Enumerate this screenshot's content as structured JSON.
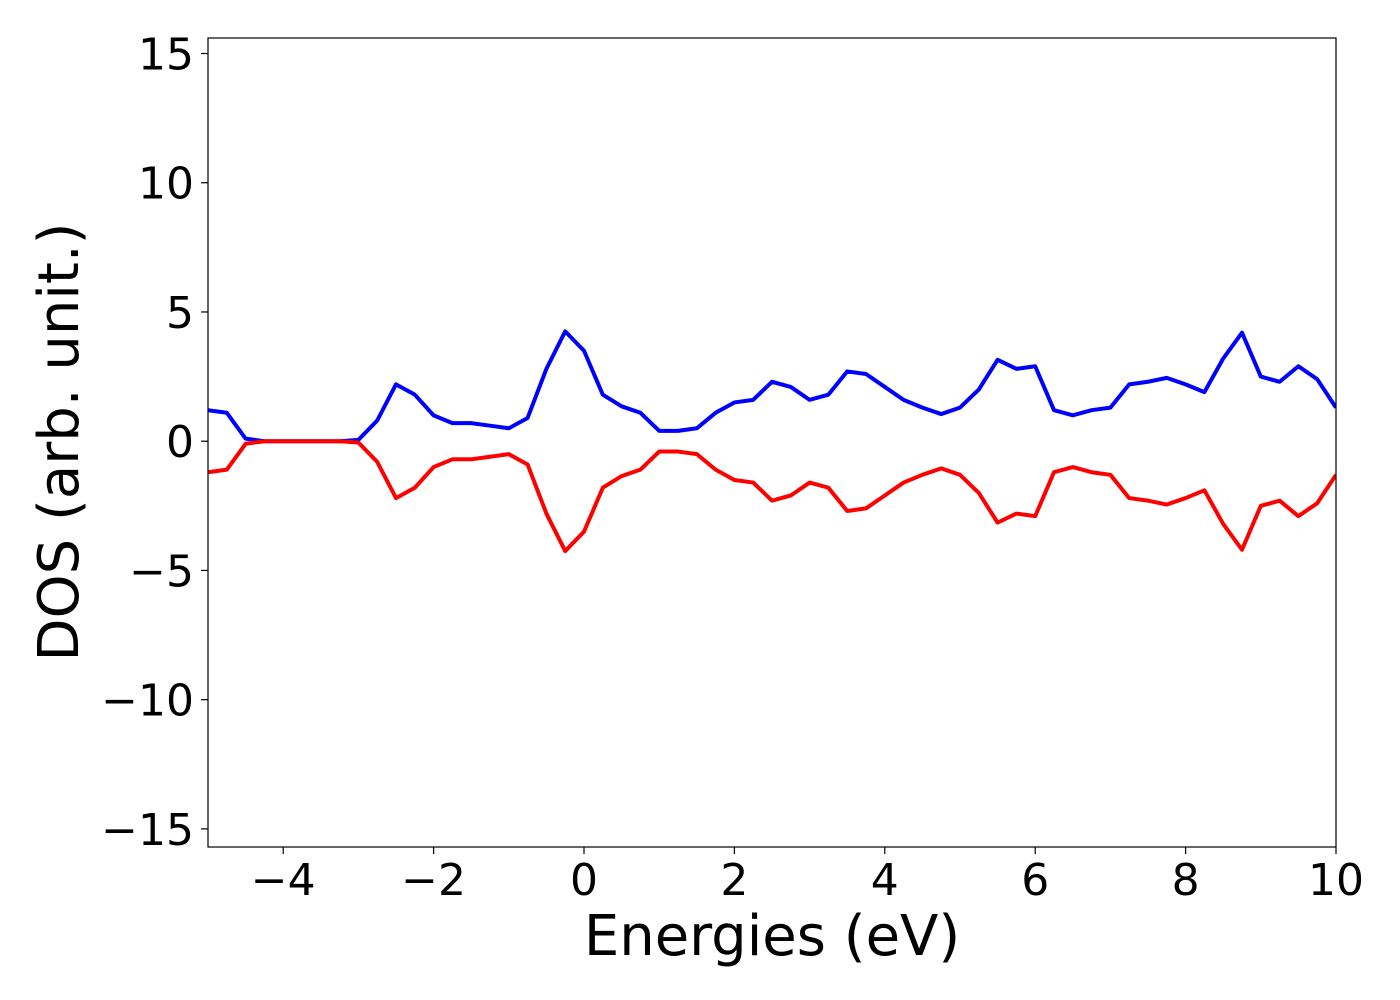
{
  "chart_data": {
    "type": "line",
    "xlabel": "Energies (eV)",
    "ylabel": "DOS (arb. unit.)",
    "x": [
      -5,
      -4.75,
      -4.5,
      -4.25,
      -4,
      -3.75,
      -3.5,
      -3.25,
      -3,
      -2.75,
      -2.5,
      -2.25,
      -2,
      -1.75,
      -1.5,
      -1.25,
      -1,
      -0.75,
      -0.5,
      -0.25,
      0,
      0.25,
      0.5,
      0.75,
      1,
      1.25,
      1.5,
      1.75,
      2,
      2.25,
      2.5,
      2.75,
      3,
      3.25,
      3.5,
      3.75,
      4,
      4.25,
      4.5,
      4.75,
      5,
      5.25,
      5.5,
      5.75,
      6,
      6.25,
      6.5,
      6.75,
      7,
      7.25,
      7.5,
      7.75,
      8,
      8.25,
      8.5,
      8.75,
      9,
      9.25,
      9.5,
      9.75,
      10
    ],
    "series": [
      {
        "color": "#0000ff",
        "values": [
          1.2,
          1.1,
          0.1,
          0,
          0,
          0,
          0,
          0,
          0.05,
          0.8,
          2.2,
          1.8,
          1.0,
          0.7,
          0.7,
          0.6,
          0.5,
          0.9,
          2.8,
          4.25,
          3.5,
          1.8,
          1.35,
          1.1,
          0.4,
          0.4,
          0.5,
          1.1,
          1.5,
          1.6,
          2.3,
          2.1,
          1.6,
          1.8,
          2.7,
          2.6,
          2.1,
          1.6,
          1.3,
          1.05,
          1.3,
          2.0,
          3.15,
          2.8,
          2.9,
          1.2,
          1.0,
          1.2,
          1.3,
          2.2,
          2.3,
          2.45,
          2.2,
          1.9,
          3.2,
          4.2,
          2.5,
          2.3,
          2.9,
          2.4,
          1.3
        ]
      },
      {
        "color": "#ff0000",
        "values": [
          -1.2,
          -1.1,
          -0.1,
          0,
          0,
          0,
          0,
          0,
          -0.05,
          -0.8,
          -2.2,
          -1.8,
          -1.0,
          -0.7,
          -0.7,
          -0.6,
          -0.5,
          -0.9,
          -2.8,
          -4.25,
          -3.5,
          -1.8,
          -1.35,
          -1.1,
          -0.4,
          -0.4,
          -0.5,
          -1.1,
          -1.5,
          -1.6,
          -2.3,
          -2.1,
          -1.6,
          -1.8,
          -2.7,
          -2.6,
          -2.1,
          -1.6,
          -1.3,
          -1.05,
          -1.3,
          -2.0,
          -3.15,
          -2.8,
          -2.9,
          -1.2,
          -1.0,
          -1.2,
          -1.3,
          -2.2,
          -2.3,
          -2.45,
          -2.2,
          -1.9,
          -3.2,
          -4.2,
          -2.5,
          -2.3,
          -2.9,
          -2.4,
          -1.3
        ]
      }
    ],
    "xlim": [
      -5,
      10
    ],
    "ylim": [
      -15.7,
      15.6
    ],
    "xticks": [
      {
        "value": -4,
        "label": "−4"
      },
      {
        "value": -2,
        "label": "−2"
      },
      0,
      2,
      4,
      6,
      8,
      10
    ],
    "yticks": [
      {
        "value": -15,
        "label": "−15"
      },
      {
        "value": -10,
        "label": "−10"
      },
      {
        "value": -5,
        "label": "−5"
      },
      0,
      5,
      10,
      15
    ],
    "grid": false
  }
}
